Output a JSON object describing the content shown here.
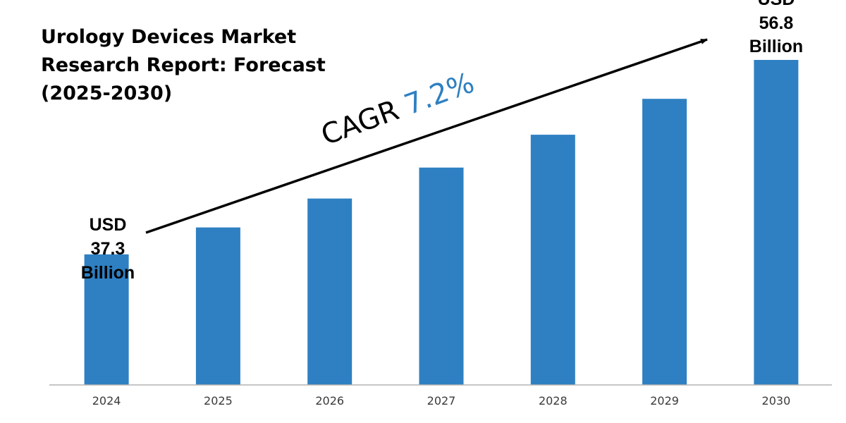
{
  "title_lines": [
    "Urology Devices Market",
    "Research Report: Forecast",
    "(2025-2030)"
  ],
  "cagr": {
    "label": "CAGR",
    "value": "7.2%"
  },
  "callouts": {
    "start": [
      "USD",
      "37.3",
      "Billion"
    ],
    "end": [
      "USD",
      "56.8",
      "Billion"
    ]
  },
  "colors": {
    "bar": "#2e80c2",
    "cagr_value": "#2e80c2",
    "text": "#000000",
    "axis": "#b3b3b3"
  },
  "chart_data": {
    "type": "bar",
    "title": "Urology Devices Market Research Report: Forecast (2025-2030)",
    "categories": [
      "2024",
      "2025",
      "2026",
      "2027",
      "2028",
      "2029",
      "2030"
    ],
    "values": [
      37.3,
      40.0,
      42.9,
      46.0,
      49.3,
      52.9,
      56.8
    ],
    "unit": "USD Billion",
    "ylim": [
      24.2,
      56.8
    ],
    "grid": false,
    "legend": "none"
  }
}
